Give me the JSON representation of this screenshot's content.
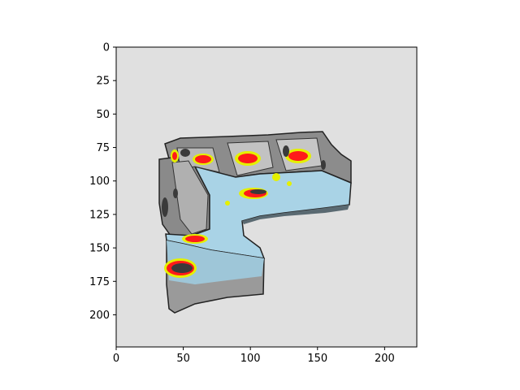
{
  "figure": {
    "background_color": "#e0e0e0",
    "image_subject": "sectional-sofa-heatmap-render",
    "colors": {
      "sofa_light": "#a9d3e6",
      "sofa_mid": "#8fbcd1",
      "sofa_grey": "#8c8c8c",
      "sofa_dark": "#3a3a3a",
      "hotspot_red": "#ff1a1a",
      "hotspot_yellow": "#e5f000"
    }
  },
  "axes": {
    "xlim": [
      0,
      224
    ],
    "ylim": [
      224,
      0
    ],
    "x_ticks": [
      {
        "value": 0,
        "label": "0"
      },
      {
        "value": 50,
        "label": "50"
      },
      {
        "value": 100,
        "label": "100"
      },
      {
        "value": 150,
        "label": "150"
      },
      {
        "value": 200,
        "label": "200"
      }
    ],
    "y_ticks": [
      {
        "value": 0,
        "label": "0"
      },
      {
        "value": 25,
        "label": "25"
      },
      {
        "value": 50,
        "label": "50"
      },
      {
        "value": 75,
        "label": "75"
      },
      {
        "value": 100,
        "label": "100"
      },
      {
        "value": 125,
        "label": "125"
      },
      {
        "value": 150,
        "label": "150"
      },
      {
        "value": 175,
        "label": "175"
      },
      {
        "value": 200,
        "label": "200"
      }
    ]
  }
}
